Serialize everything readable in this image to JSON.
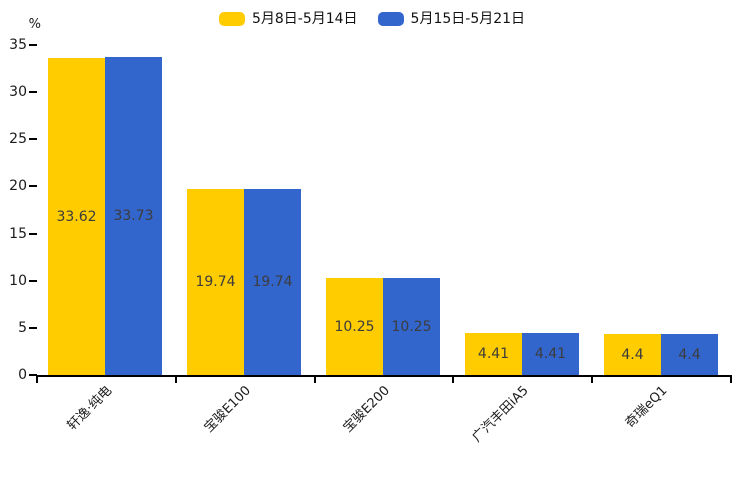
{
  "chart_data": {
    "type": "bar",
    "title": "",
    "ylabel": "%",
    "xlabel": "",
    "categories": [
      "轩逸·纯电",
      "宝骏E100",
      "宝骏E200",
      "广汽丰田iA5",
      "奇瑞eQ1"
    ],
    "series": [
      {
        "name": "5月8日-5月14日",
        "color": "#FFCC00",
        "values": [
          33.62,
          19.74,
          10.25,
          4.41,
          4.4
        ]
      },
      {
        "name": "5月15日-5月21日",
        "color": "#3366CC",
        "values": [
          33.73,
          19.74,
          10.25,
          4.41,
          4.4
        ]
      }
    ],
    "ylim": [
      0,
      35
    ],
    "yticks": [
      0,
      5,
      10,
      15,
      20,
      25,
      30,
      35
    ],
    "grid": false,
    "legend_position": "top-center",
    "colors": {
      "axis": "#000000",
      "tick_label": "#1a1a1a",
      "value_label": "#3c3c3c",
      "background": "#ffffff"
    }
  }
}
